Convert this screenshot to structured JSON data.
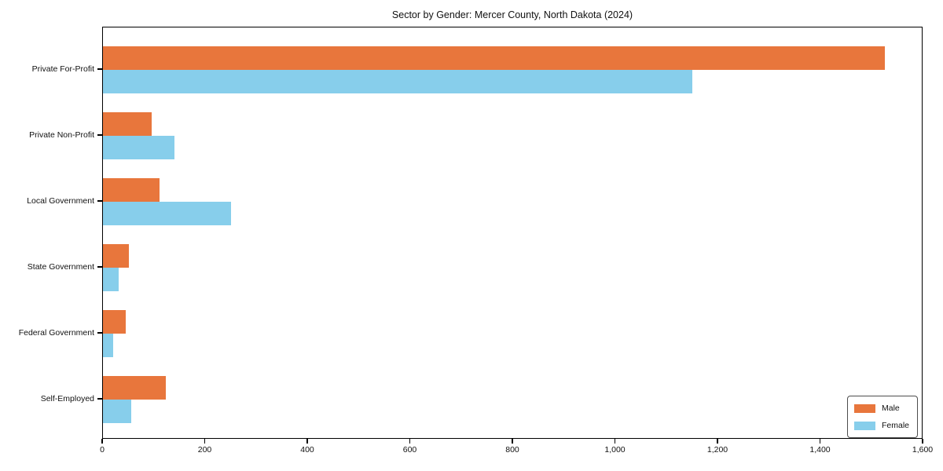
{
  "chart_data": {
    "type": "bar",
    "orientation": "horizontal",
    "title": "Sector by Gender: Mercer County, North Dakota (2024)",
    "categories": [
      "Private For-Profit",
      "Private Non-Profit",
      "Local Government",
      "State Government",
      "Federal Government",
      "Self-Employed"
    ],
    "series": [
      {
        "name": "Male",
        "color": "#E8763C",
        "values": [
          1525,
          95,
          110,
          50,
          45,
          122
        ]
      },
      {
        "name": "Female",
        "color": "#87CEEB",
        "values": [
          1150,
          140,
          250,
          30,
          20,
          55
        ]
      }
    ],
    "xlabel": "",
    "ylabel": "",
    "xlim": [
      0,
      1600
    ],
    "xticks": [
      0,
      200,
      400,
      600,
      800,
      1000,
      1200,
      1400,
      1600
    ],
    "xtick_labels": [
      "0",
      "200",
      "400",
      "600",
      "800",
      "1,000",
      "1,200",
      "1,400",
      "1,600"
    ],
    "grid": false,
    "legend": {
      "position": "lower right",
      "entries": [
        "Male",
        "Female"
      ]
    }
  },
  "colors": {
    "male": "#E8763C",
    "female": "#87CEEB",
    "axis": "#000000",
    "background": "#ffffff"
  }
}
